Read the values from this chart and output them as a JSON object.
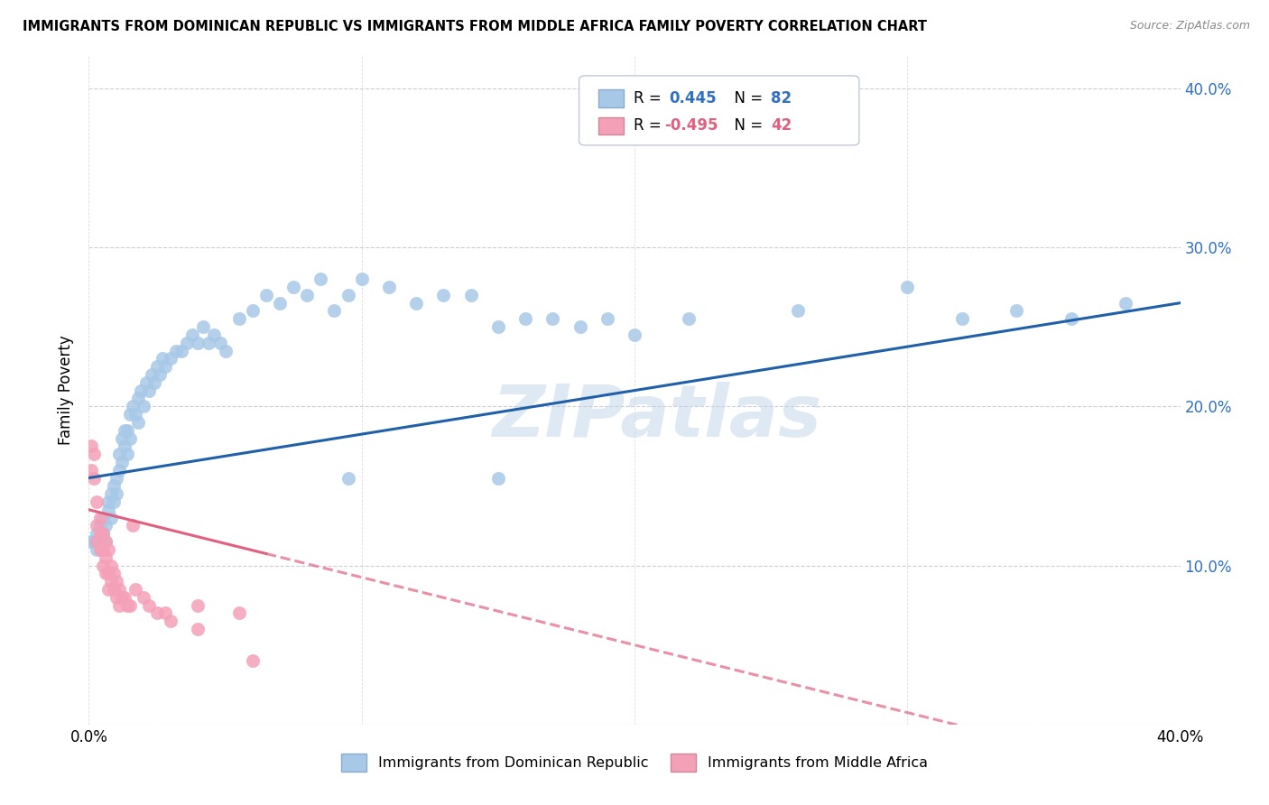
{
  "title": "IMMIGRANTS FROM DOMINICAN REPUBLIC VS IMMIGRANTS FROM MIDDLE AFRICA FAMILY POVERTY CORRELATION CHART",
  "source": "Source: ZipAtlas.com",
  "ylabel": "Family Poverty",
  "legend_label1": "Immigrants from Dominican Republic",
  "legend_label2": "Immigrants from Middle Africa",
  "r1": 0.445,
  "n1": 82,
  "r2": -0.495,
  "n2": 42,
  "watermark": "ZIPatlas",
  "blue_color": "#a8c8e8",
  "pink_color": "#f4a0b8",
  "blue_line_color": "#2060a8",
  "pink_line_color": "#e06080",
  "blue_scatter": [
    [
      0.001,
      0.115
    ],
    [
      0.002,
      0.115
    ],
    [
      0.003,
      0.11
    ],
    [
      0.003,
      0.12
    ],
    [
      0.004,
      0.115
    ],
    [
      0.004,
      0.125
    ],
    [
      0.005,
      0.13
    ],
    [
      0.005,
      0.12
    ],
    [
      0.006,
      0.125
    ],
    [
      0.006,
      0.115
    ],
    [
      0.007,
      0.14
    ],
    [
      0.007,
      0.135
    ],
    [
      0.008,
      0.145
    ],
    [
      0.008,
      0.13
    ],
    [
      0.009,
      0.15
    ],
    [
      0.009,
      0.14
    ],
    [
      0.01,
      0.155
    ],
    [
      0.01,
      0.145
    ],
    [
      0.011,
      0.17
    ],
    [
      0.011,
      0.16
    ],
    [
      0.012,
      0.18
    ],
    [
      0.012,
      0.165
    ],
    [
      0.013,
      0.175
    ],
    [
      0.013,
      0.185
    ],
    [
      0.014,
      0.185
    ],
    [
      0.014,
      0.17
    ],
    [
      0.015,
      0.195
    ],
    [
      0.015,
      0.18
    ],
    [
      0.016,
      0.2
    ],
    [
      0.017,
      0.195
    ],
    [
      0.018,
      0.205
    ],
    [
      0.018,
      0.19
    ],
    [
      0.019,
      0.21
    ],
    [
      0.02,
      0.2
    ],
    [
      0.021,
      0.215
    ],
    [
      0.022,
      0.21
    ],
    [
      0.023,
      0.22
    ],
    [
      0.024,
      0.215
    ],
    [
      0.025,
      0.225
    ],
    [
      0.026,
      0.22
    ],
    [
      0.027,
      0.23
    ],
    [
      0.028,
      0.225
    ],
    [
      0.03,
      0.23
    ],
    [
      0.032,
      0.235
    ],
    [
      0.034,
      0.235
    ],
    [
      0.036,
      0.24
    ],
    [
      0.038,
      0.245
    ],
    [
      0.04,
      0.24
    ],
    [
      0.042,
      0.25
    ],
    [
      0.044,
      0.24
    ],
    [
      0.046,
      0.245
    ],
    [
      0.048,
      0.24
    ],
    [
      0.05,
      0.235
    ],
    [
      0.055,
      0.255
    ],
    [
      0.06,
      0.26
    ],
    [
      0.065,
      0.27
    ],
    [
      0.07,
      0.265
    ],
    [
      0.075,
      0.275
    ],
    [
      0.08,
      0.27
    ],
    [
      0.085,
      0.28
    ],
    [
      0.09,
      0.26
    ],
    [
      0.095,
      0.27
    ],
    [
      0.1,
      0.28
    ],
    [
      0.11,
      0.275
    ],
    [
      0.12,
      0.265
    ],
    [
      0.13,
      0.27
    ],
    [
      0.14,
      0.27
    ],
    [
      0.15,
      0.25
    ],
    [
      0.16,
      0.255
    ],
    [
      0.17,
      0.255
    ],
    [
      0.18,
      0.25
    ],
    [
      0.19,
      0.255
    ],
    [
      0.2,
      0.245
    ],
    [
      0.22,
      0.255
    ],
    [
      0.26,
      0.26
    ],
    [
      0.3,
      0.275
    ],
    [
      0.32,
      0.255
    ],
    [
      0.34,
      0.26
    ],
    [
      0.36,
      0.255
    ],
    [
      0.38,
      0.265
    ],
    [
      0.095,
      0.155
    ],
    [
      0.15,
      0.155
    ]
  ],
  "pink_scatter": [
    [
      0.001,
      0.175
    ],
    [
      0.001,
      0.16
    ],
    [
      0.002,
      0.17
    ],
    [
      0.002,
      0.155
    ],
    [
      0.003,
      0.14
    ],
    [
      0.003,
      0.125
    ],
    [
      0.003,
      0.115
    ],
    [
      0.004,
      0.13
    ],
    [
      0.004,
      0.12
    ],
    [
      0.004,
      0.11
    ],
    [
      0.005,
      0.12
    ],
    [
      0.005,
      0.11
    ],
    [
      0.005,
      0.1
    ],
    [
      0.006,
      0.115
    ],
    [
      0.006,
      0.105
    ],
    [
      0.006,
      0.095
    ],
    [
      0.007,
      0.11
    ],
    [
      0.007,
      0.095
    ],
    [
      0.007,
      0.085
    ],
    [
      0.008,
      0.1
    ],
    [
      0.008,
      0.09
    ],
    [
      0.009,
      0.095
    ],
    [
      0.009,
      0.085
    ],
    [
      0.01,
      0.09
    ],
    [
      0.01,
      0.08
    ],
    [
      0.011,
      0.085
    ],
    [
      0.011,
      0.075
    ],
    [
      0.012,
      0.08
    ],
    [
      0.013,
      0.08
    ],
    [
      0.014,
      0.075
    ],
    [
      0.015,
      0.075
    ],
    [
      0.016,
      0.125
    ],
    [
      0.017,
      0.085
    ],
    [
      0.02,
      0.08
    ],
    [
      0.022,
      0.075
    ],
    [
      0.025,
      0.07
    ],
    [
      0.028,
      0.07
    ],
    [
      0.03,
      0.065
    ],
    [
      0.04,
      0.075
    ],
    [
      0.04,
      0.06
    ],
    [
      0.055,
      0.07
    ],
    [
      0.06,
      0.04
    ]
  ],
  "xlim": [
    0.0,
    0.4
  ],
  "ylim": [
    0.0,
    0.42
  ],
  "ytick_positions": [
    0.0,
    0.1,
    0.2,
    0.3,
    0.4
  ],
  "ytick_labels_right": [
    "",
    "10.0%",
    "20.0%",
    "30.0%",
    "40.0%"
  ],
  "xtick_positions": [
    0.0,
    0.1,
    0.2,
    0.3,
    0.4
  ],
  "xtick_labels": [
    "0.0%",
    "",
    "",
    "",
    "40.0%"
  ],
  "background_color": "#ffffff",
  "grid_color": "#cccccc"
}
